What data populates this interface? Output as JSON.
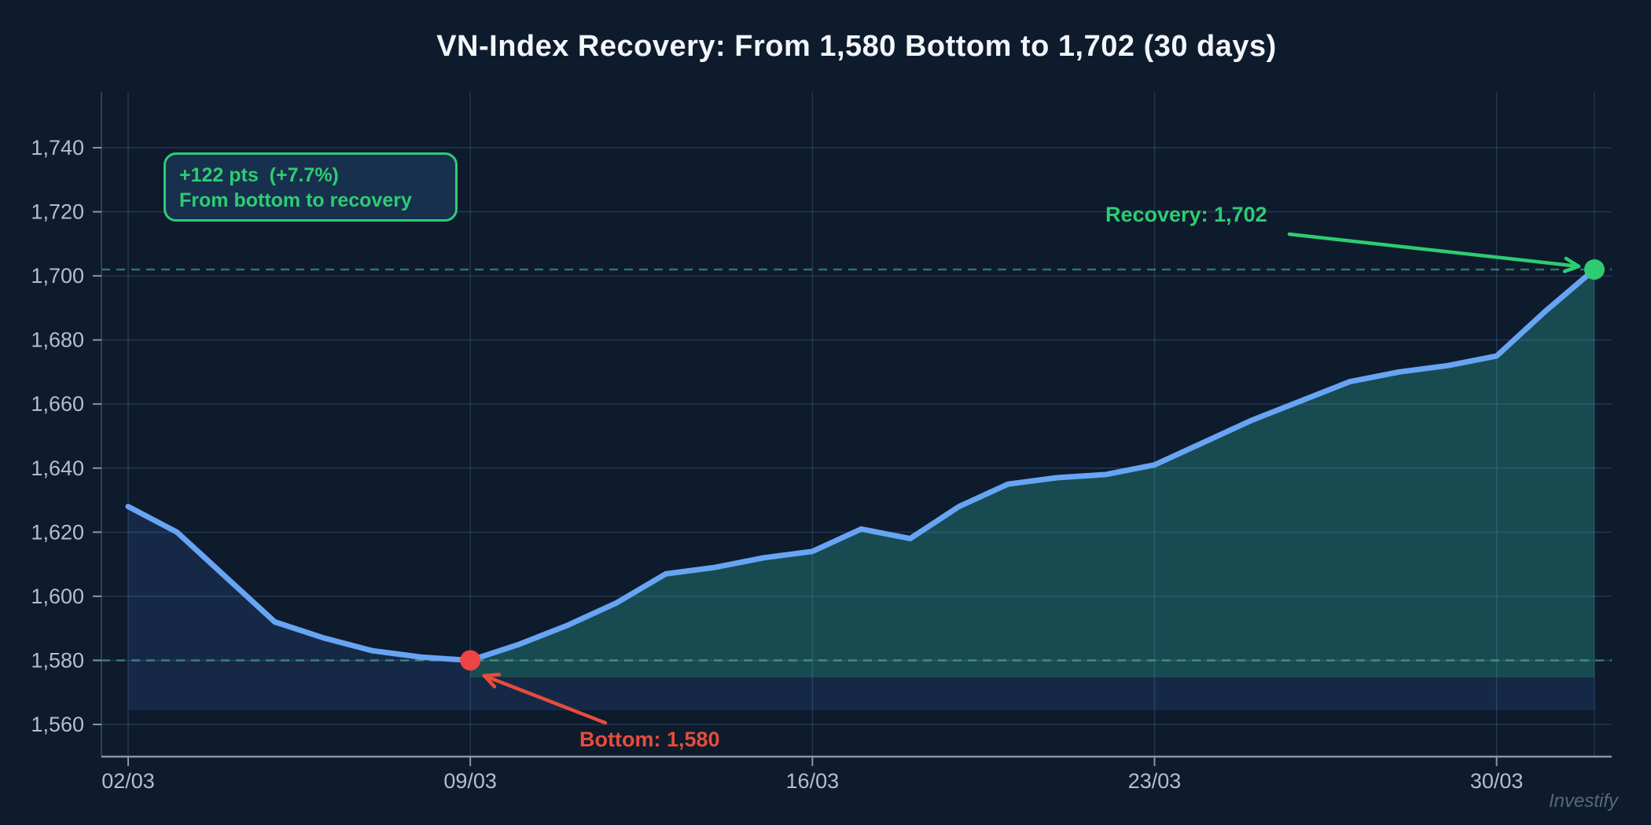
{
  "title": "VN-Index Recovery: From 1,580 Bottom to 1,702 (30 days)",
  "watermark": "Investify",
  "annotations": {
    "summary_line1": "+122 pts  (+7.7%)",
    "summary_line2": "From bottom to recovery",
    "recovery_label": "Recovery: 1,702",
    "bottom_label": "Bottom: 1,580"
  },
  "colors": {
    "background": "#0d1b2d",
    "line": "#68a4f4",
    "area_fill": "rgba(74,137,243,0.13)",
    "recovery_fill": "rgba(40,215,125,0.20)",
    "grid": "rgba(96,125,175,0.28)",
    "axis": "#8a95a5",
    "spine": "#3a4c66",
    "tick_label": "#b3bed1",
    "green": "#2ecc71",
    "red": "#e74c3c",
    "red_dot": "#ef4444",
    "reference_dash": "rgba(80,190,150,0.55)"
  },
  "chart_data": {
    "type": "area",
    "title": "VN-Index Recovery: From 1,580 Bottom to 1,702 (30 days)",
    "xlabel": "",
    "ylabel": "",
    "ylim": [
      1550,
      1765
    ],
    "grid": true,
    "x_tick_labels": [
      "02/03",
      "09/03",
      "16/03",
      "23/03",
      "30/03"
    ],
    "x_tick_positions": [
      0,
      7,
      14,
      21,
      28
    ],
    "x_gridline_positions": [
      0,
      7,
      14,
      21,
      28,
      30
    ],
    "y_ticks": [
      1560,
      1580,
      1600,
      1620,
      1640,
      1660,
      1680,
      1700,
      1720,
      1740
    ],
    "series": [
      {
        "name": "VN-Index",
        "x": [
          0,
          1,
          2,
          3,
          4,
          5,
          6,
          7,
          8,
          9,
          10,
          11,
          12,
          13,
          14,
          15,
          16,
          17,
          18,
          19,
          20,
          21,
          22,
          23,
          24,
          25,
          26,
          27,
          28,
          29,
          30
        ],
        "values": [
          1628,
          1620,
          1606,
          1592,
          1587,
          1583,
          1581,
          1580,
          1585,
          1591,
          1598,
          1607,
          1609,
          1612,
          1614,
          1621,
          1618,
          1628,
          1635,
          1637,
          1638,
          1641,
          1648,
          1655,
          1661,
          1667,
          1670,
          1672,
          1675,
          1689,
          1702
        ]
      }
    ],
    "markers": [
      {
        "name": "bottom",
        "x": 7,
        "value": 1580
      },
      {
        "name": "recovery",
        "x": 30,
        "value": 1702
      }
    ],
    "reference_lines": [
      1580,
      1702
    ],
    "area_base_values": {
      "full": 1564.4,
      "recovery": 1574.7
    },
    "legend": "none"
  }
}
